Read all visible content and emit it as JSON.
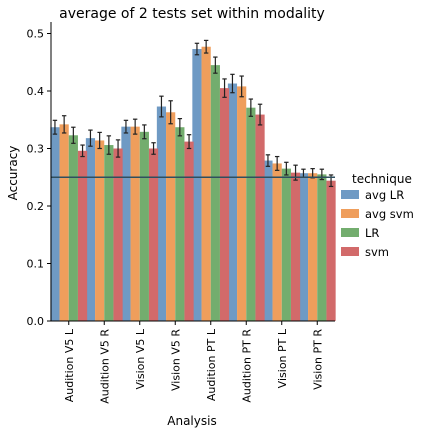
{
  "chart_data": {
    "type": "bar",
    "title": "average of 2 tests set within modality",
    "xlabel": "Analysis",
    "ylabel": "Accuracy",
    "ylim": [
      0,
      0.52
    ],
    "yticks": [
      "0.0",
      "0.1",
      "0.2",
      "0.3",
      "0.4",
      "0.5"
    ],
    "categories": [
      "Audition V5 L",
      "Audition V5 R",
      "Vision V5 L",
      "Vision V5 R",
      "Audition PT L",
      "Audition PT R",
      "Vision PT L",
      "Vision PT R"
    ],
    "reference_line": 0.25,
    "legend_title": "technique",
    "legend_position": "right",
    "series": [
      {
        "name": "avg LR",
        "color": "#6f9ac4",
        "values": [
          0.337,
          0.318,
          0.338,
          0.373,
          0.473,
          0.413,
          0.279,
          0.257
        ],
        "err": [
          0.012,
          0.014,
          0.011,
          0.018,
          0.01,
          0.016,
          0.01,
          0.007
        ]
      },
      {
        "name": "avg svm",
        "color": "#ef9e5c",
        "values": [
          0.342,
          0.314,
          0.338,
          0.363,
          0.477,
          0.408,
          0.274,
          0.257
        ],
        "err": [
          0.015,
          0.014,
          0.013,
          0.02,
          0.011,
          0.018,
          0.012,
          0.008
        ]
      },
      {
        "name": "LR",
        "color": "#73ad6e",
        "values": [
          0.323,
          0.306,
          0.329,
          0.337,
          0.445,
          0.371,
          0.265,
          0.255
        ],
        "err": [
          0.014,
          0.016,
          0.012,
          0.015,
          0.014,
          0.015,
          0.011,
          0.009
        ]
      },
      {
        "name": "svm",
        "color": "#d26a6a",
        "values": [
          0.296,
          0.3,
          0.3,
          0.312,
          0.405,
          0.359,
          0.258,
          0.244
        ],
        "err": [
          0.01,
          0.015,
          0.01,
          0.012,
          0.016,
          0.018,
          0.013,
          0.01
        ]
      }
    ]
  }
}
